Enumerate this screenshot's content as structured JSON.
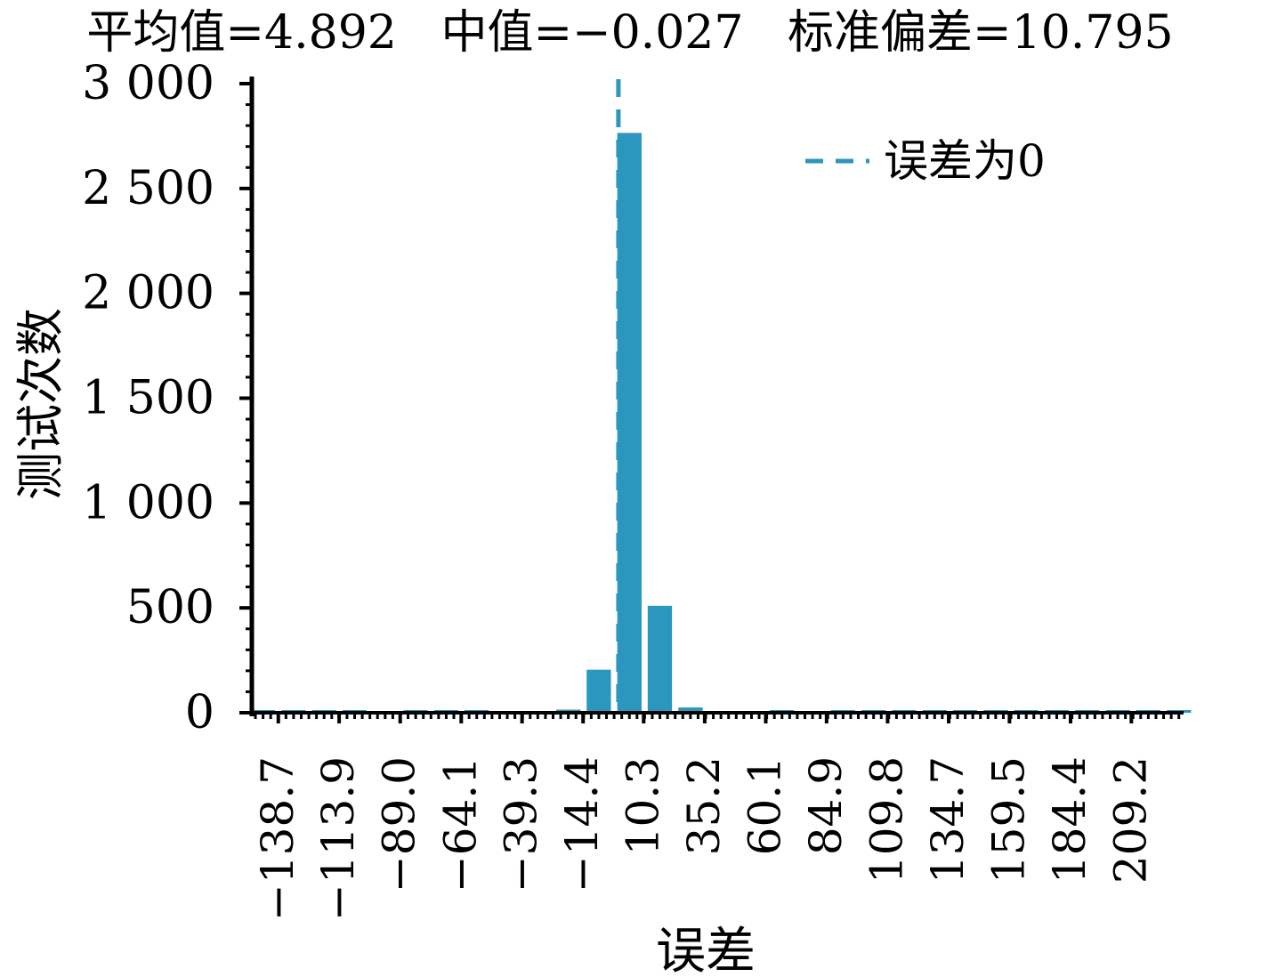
{
  "chart_data": {
    "type": "bar",
    "title": "平均值=4.892   中值=−0.027   标准偏差=10.795",
    "xlabel": "误差",
    "ylabel": "测试次数",
    "xlim": [
      -149.5,
      230.5
    ],
    "ylim": [
      0,
      3000
    ],
    "yticks": [
      0,
      500,
      1000,
      1500,
      2000,
      2500,
      3000
    ],
    "ytick_labels": [
      "0",
      "500",
      "1 000",
      "1 500",
      "2 000",
      "2 500",
      "3 000"
    ],
    "xticks": [
      -138.7,
      -113.9,
      -89.0,
      -64.1,
      -39.3,
      -14.4,
      10.3,
      35.2,
      60.1,
      84.9,
      109.8,
      134.7,
      159.5,
      184.4,
      209.2
    ],
    "xtick_labels": [
      "−138.7",
      "−113.9",
      "−89.0",
      "−64.1",
      "−39.3",
      "−14.4",
      "10.3",
      "35.2",
      "60.1",
      "84.9",
      "109.8",
      "134.7",
      "159.5",
      "184.4",
      "209.2"
    ],
    "bin_width": 12.45,
    "bar_color": "#2b96be",
    "bars": [
      {
        "x": -144.9,
        "value": 2
      },
      {
        "x": -132.5,
        "value": 2
      },
      {
        "x": -120.0,
        "value": 2
      },
      {
        "x": -107.6,
        "value": 2
      },
      {
        "x": -95.1,
        "value": 0
      },
      {
        "x": -82.7,
        "value": 2
      },
      {
        "x": -70.2,
        "value": 2
      },
      {
        "x": -57.8,
        "value": 2
      },
      {
        "x": -45.3,
        "value": 0
      },
      {
        "x": -32.9,
        "value": 0
      },
      {
        "x": -20.4,
        "value": 15
      },
      {
        "x": -8.0,
        "value": 205
      },
      {
        "x": 4.5,
        "value": 2765
      },
      {
        "x": 16.9,
        "value": 510
      },
      {
        "x": 29.4,
        "value": 25
      },
      {
        "x": 41.8,
        "value": 0
      },
      {
        "x": 54.3,
        "value": 0
      },
      {
        "x": 66.7,
        "value": 2
      },
      {
        "x": 79.2,
        "value": 0
      },
      {
        "x": 91.6,
        "value": 2
      },
      {
        "x": 104.1,
        "value": 2
      },
      {
        "x": 116.5,
        "value": 2
      },
      {
        "x": 129.0,
        "value": 2
      },
      {
        "x": 141.4,
        "value": 2
      },
      {
        "x": 153.9,
        "value": 2
      },
      {
        "x": 166.3,
        "value": 2
      },
      {
        "x": 178.8,
        "value": 2
      },
      {
        "x": 191.2,
        "value": 2
      },
      {
        "x": 203.7,
        "value": 2
      },
      {
        "x": 216.1,
        "value": 2
      },
      {
        "x": 228.6,
        "value": 2
      }
    ],
    "reference_line": {
      "x": 0,
      "style": "dashed",
      "color": "#2b96be"
    },
    "legend": {
      "position": "top-right",
      "entries": [
        "误差为0"
      ]
    },
    "grid": false
  }
}
